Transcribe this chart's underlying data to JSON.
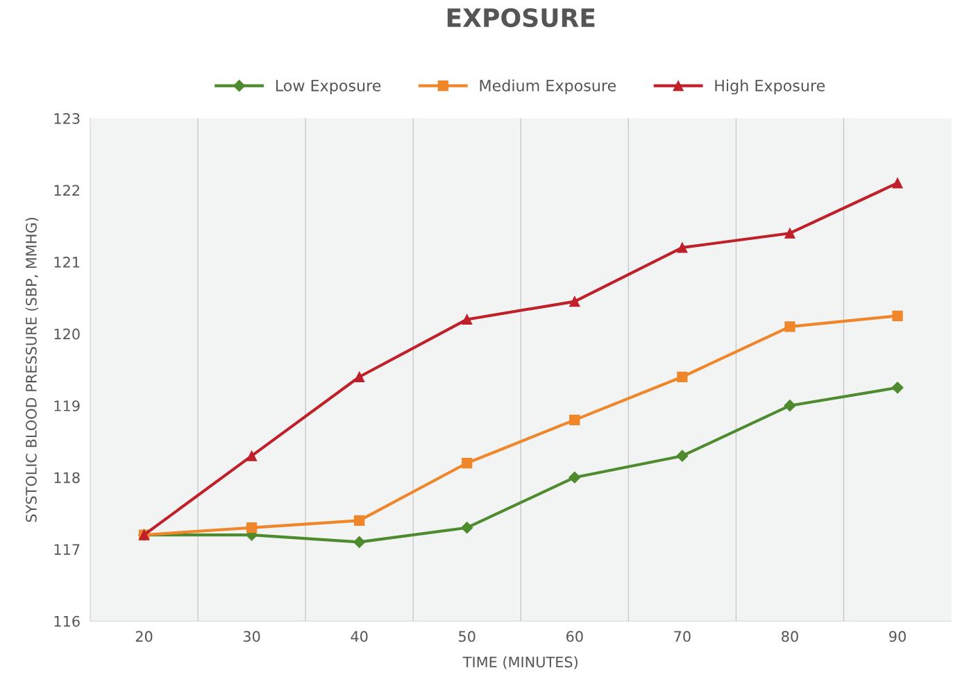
{
  "chart_data": {
    "type": "line",
    "title": "EXPOSURE",
    "xlabel": "TIME (MINUTES)",
    "ylabel": "SYSTOLIC BLOOD PRESSURE (SBP, MMHG)",
    "categories": [
      "20",
      "30",
      "40",
      "50",
      "60",
      "70",
      "80",
      "90"
    ],
    "series": [
      {
        "name": "Low Exposure",
        "color": "#4e8a2e",
        "marker": "diamond",
        "values": [
          117.2,
          117.2,
          117.1,
          117.3,
          118.0,
          118.3,
          119.0,
          119.25
        ]
      },
      {
        "name": "Medium Exposure",
        "color": "#f0862a",
        "marker": "square",
        "values": [
          117.2,
          117.3,
          117.4,
          118.2,
          118.8,
          119.4,
          120.1,
          120.25
        ]
      },
      {
        "name": "High Exposure",
        "color": "#c0202a",
        "marker": "triangle",
        "values": [
          117.2,
          118.3,
          119.4,
          120.2,
          120.45,
          121.2,
          121.4,
          122.1
        ]
      }
    ],
    "ylim": [
      116,
      123
    ],
    "yticks": [
      116,
      117,
      118,
      119,
      120,
      121,
      122,
      123
    ],
    "grid": "x",
    "legend": "top",
    "line_style": "solid"
  }
}
